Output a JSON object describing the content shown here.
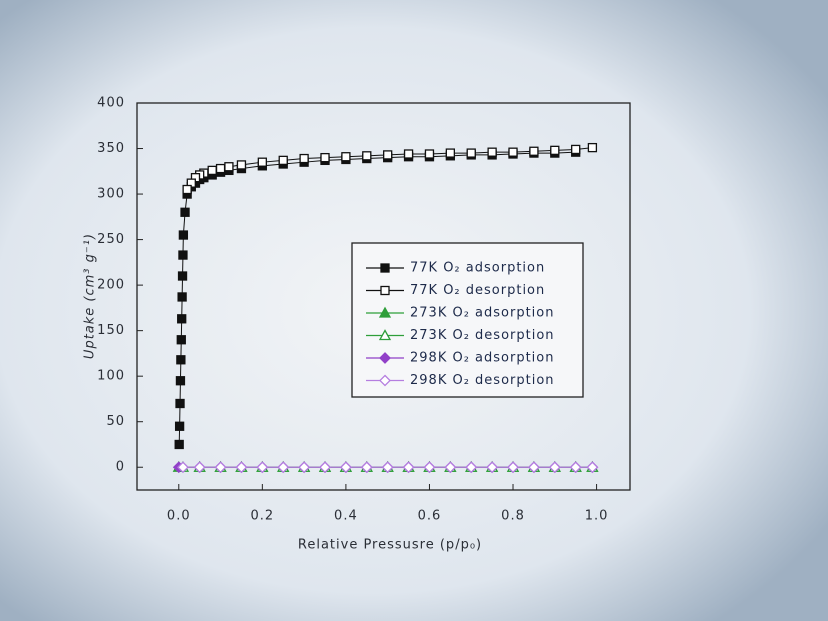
{
  "chart_data": {
    "type": "scatter",
    "x_label": "Relative Pressusre (p/p₀)",
    "y_label": "Uptake (cm³ g⁻¹)",
    "xlim": [
      -0.1,
      1.08
    ],
    "ylim": [
      -25,
      400
    ],
    "xticks": [
      {
        "value": 0,
        "label": "0.0"
      },
      0.2,
      0.4,
      0.6,
      0.8,
      {
        "value": 1,
        "label": "1.0"
      }
    ],
    "yticks": [
      0,
      50,
      100,
      150,
      200,
      250,
      300,
      350,
      400
    ],
    "legend": "center-right",
    "series": [
      {
        "name": "77K O₂ adsorption",
        "color": "#111111",
        "marker": "square",
        "filled": true,
        "x": [
          0.001,
          0.002,
          0.003,
          0.004,
          0.005,
          0.006,
          0.007,
          0.008,
          0.009,
          0.01,
          0.011,
          0.015,
          0.02,
          0.03,
          0.04,
          0.05,
          0.06,
          0.08,
          0.1,
          0.12,
          0.15,
          0.2,
          0.25,
          0.3,
          0.35,
          0.4,
          0.45,
          0.5,
          0.55,
          0.6,
          0.65,
          0.7,
          0.75,
          0.8,
          0.85,
          0.9,
          0.95
        ],
        "values": [
          25,
          45,
          70,
          95,
          118,
          140,
          163,
          187,
          210,
          233,
          255,
          280,
          300,
          308,
          312,
          316,
          318,
          321,
          324,
          326,
          328,
          331,
          333,
          335,
          337,
          338,
          339,
          340,
          341,
          341,
          342,
          343,
          343,
          344,
          345,
          345,
          346
        ]
      },
      {
        "name": "77K O₂ desorption",
        "color": "#111111",
        "marker": "square",
        "filled": false,
        "x": [
          0.99,
          0.95,
          0.9,
          0.85,
          0.8,
          0.75,
          0.7,
          0.65,
          0.6,
          0.55,
          0.5,
          0.45,
          0.4,
          0.35,
          0.3,
          0.25,
          0.2,
          0.15,
          0.12,
          0.1,
          0.08,
          0.06,
          0.05,
          0.04,
          0.03,
          0.02
        ],
        "values": [
          351,
          349,
          348,
          347,
          346,
          346,
          345,
          345,
          344,
          344,
          343,
          342,
          341,
          340,
          339,
          337,
          335,
          332,
          330,
          328,
          326,
          323,
          321,
          318,
          312,
          305
        ]
      },
      {
        "name": "273K O₂ adsorption",
        "color": "#2e9e3a",
        "marker": "triangle",
        "filled": true,
        "x": [
          0,
          0.05,
          0.1,
          0.15,
          0.2,
          0.25,
          0.3,
          0.35,
          0.4,
          0.45,
          0.5,
          0.55,
          0.6,
          0.65,
          0.7,
          0.75,
          0.8,
          0.85,
          0.9,
          0.95,
          0.99
        ],
        "values": [
          0,
          0,
          0,
          0,
          0,
          0,
          0,
          0,
          0,
          0,
          0,
          0,
          0,
          0,
          0,
          0,
          0,
          0,
          0,
          0,
          0
        ]
      },
      {
        "name": "273K O₂ desorption",
        "color": "#2e9e3a",
        "marker": "triangle",
        "filled": false,
        "x": [
          0.99,
          0.95,
          0.9,
          0.85,
          0.8,
          0.75,
          0.7,
          0.65,
          0.6,
          0.55,
          0.5,
          0.45,
          0.4,
          0.35,
          0.3,
          0.25,
          0.2,
          0.15,
          0.1,
          0.05,
          0.01
        ],
        "values": [
          0,
          0,
          0,
          0,
          0,
          0,
          0,
          0,
          0,
          0,
          0,
          0,
          0,
          0,
          0,
          0,
          0,
          0,
          0,
          0,
          0
        ]
      },
      {
        "name": "298K O₂ adsorption",
        "color": "#9140c8",
        "marker": "diamond",
        "filled": true,
        "x": [
          0,
          0.05,
          0.1,
          0.15,
          0.2,
          0.25,
          0.3,
          0.35,
          0.4,
          0.45,
          0.5,
          0.55,
          0.6,
          0.65,
          0.7,
          0.75,
          0.8,
          0.85,
          0.9,
          0.95,
          0.99
        ],
        "values": [
          0,
          0,
          0,
          0,
          0,
          0,
          0,
          0,
          0,
          0,
          0,
          0,
          0,
          0,
          0,
          0,
          0,
          0,
          0,
          0,
          0
        ]
      },
      {
        "name": "298K O₂ desorption",
        "color": "#b57ee0",
        "marker": "diamond",
        "filled": false,
        "x": [
          0.99,
          0.95,
          0.9,
          0.85,
          0.8,
          0.75,
          0.7,
          0.65,
          0.6,
          0.55,
          0.5,
          0.45,
          0.4,
          0.35,
          0.3,
          0.25,
          0.2,
          0.15,
          0.1,
          0.05,
          0.01
        ],
        "values": [
          0,
          0,
          0,
          0,
          0,
          0,
          0,
          0,
          0,
          0,
          0,
          0,
          0,
          0,
          0,
          0,
          0,
          0,
          0,
          0,
          0
        ]
      }
    ]
  }
}
